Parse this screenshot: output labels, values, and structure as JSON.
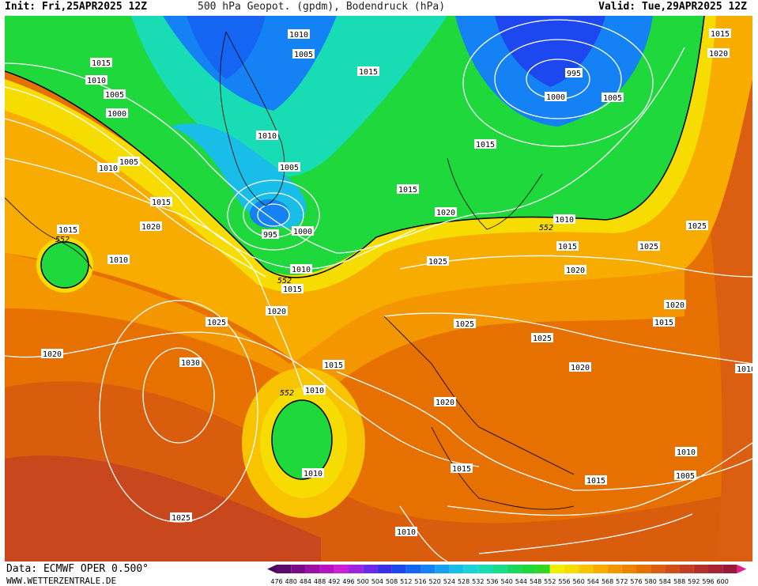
{
  "header": {
    "init": "Init: Fri,25APR2025 12Z",
    "title": "500 hPa Geopot. (gpdm), Bodendruck (hPa)",
    "valid": "Valid: Tue,29APR2025 12Z"
  },
  "footer": {
    "data_source": "Data: ECMWF OPER 0.500°",
    "url": "WWW.WETTERZENTRALE.DE"
  },
  "colorbar": {
    "ticks": [
      "476",
      "480",
      "484",
      "488",
      "492",
      "496",
      "500",
      "504",
      "508",
      "512",
      "516",
      "520",
      "524",
      "528",
      "532",
      "536",
      "540",
      "544",
      "548",
      "552",
      "556",
      "560",
      "564",
      "568",
      "572",
      "576",
      "580",
      "584",
      "588",
      "592",
      "596",
      "600"
    ],
    "colors": [
      "#5b0a6e",
      "#7a0c8a",
      "#9a10a5",
      "#b515c0",
      "#cc20d8",
      "#9d25e0",
      "#6a2ae6",
      "#3a30ea",
      "#1d48f0",
      "#1465f2",
      "#1482f4",
      "#16a0f2",
      "#18bde8",
      "#1ad3d8",
      "#18dcb4",
      "#18dc8a",
      "#18d860",
      "#1ed83c",
      "#30d820",
      "#eef000",
      "#f6dc00",
      "#f8c400",
      "#f8ac00",
      "#f49600",
      "#ef8200",
      "#e67000",
      "#dc5e10",
      "#d04e18",
      "#c23e22",
      "#b4302a",
      "#a82432",
      "#9a1838"
    ],
    "isobar_color": "#ffffff",
    "h552_line_color": "#000000"
  },
  "map": {
    "h552_labels": [
      "552",
      "552",
      "552",
      "552",
      "552"
    ],
    "pressure_labels": {
      "top": [
        "1010",
        "1005",
        "1015",
        "995",
        "1000",
        "1005",
        "1015",
        "1020"
      ],
      "west": [
        "1015",
        "1010",
        "1005",
        "1000",
        "1010",
        "1005",
        "1015",
        "1015",
        "1020",
        "1010"
      ],
      "central": [
        "1010",
        "1005",
        "995",
        "1000",
        "1010",
        "1015",
        "1015",
        "1020",
        "1020",
        "1025",
        "1025"
      ],
      "europe": [
        "1015",
        "1020",
        "1025",
        "1025",
        "1020",
        "1015",
        "1020",
        "1025",
        "1020",
        "1010",
        "1015",
        "1010",
        "1015",
        "1010",
        "1005",
        "1010"
      ],
      "south": [
        "1025",
        "1030",
        "1015",
        "1015",
        "1010",
        "1010",
        "1020",
        "1025"
      ]
    }
  }
}
